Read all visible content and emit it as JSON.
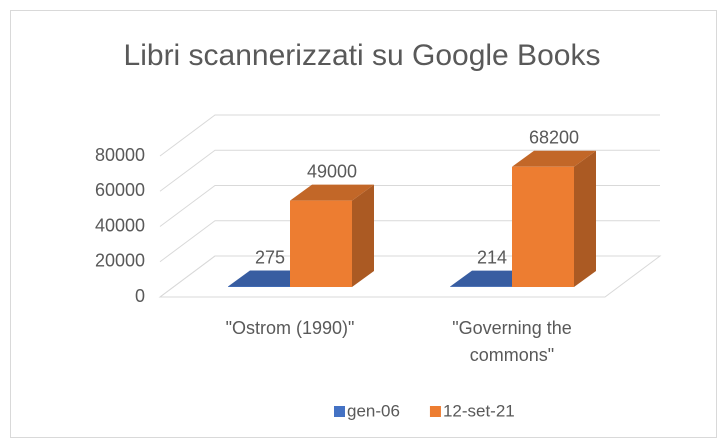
{
  "chart_data": {
    "type": "bar3d",
    "title": "Libri scannerizzati su Google Books",
    "categories": [
      "\"Ostrom (1990)\"",
      "\"Governing the commons\""
    ],
    "series": [
      {
        "name": "gen-06",
        "color": "#4472c4",
        "values": [
          275,
          214
        ]
      },
      {
        "name": "12-set-21",
        "color": "#ed7d31",
        "values": [
          49000,
          68200
        ]
      }
    ],
    "ylim": [
      0,
      80000
    ],
    "yticks": [
      0,
      20000,
      40000,
      60000,
      80000
    ],
    "grid": true,
    "legend": "bottom"
  }
}
